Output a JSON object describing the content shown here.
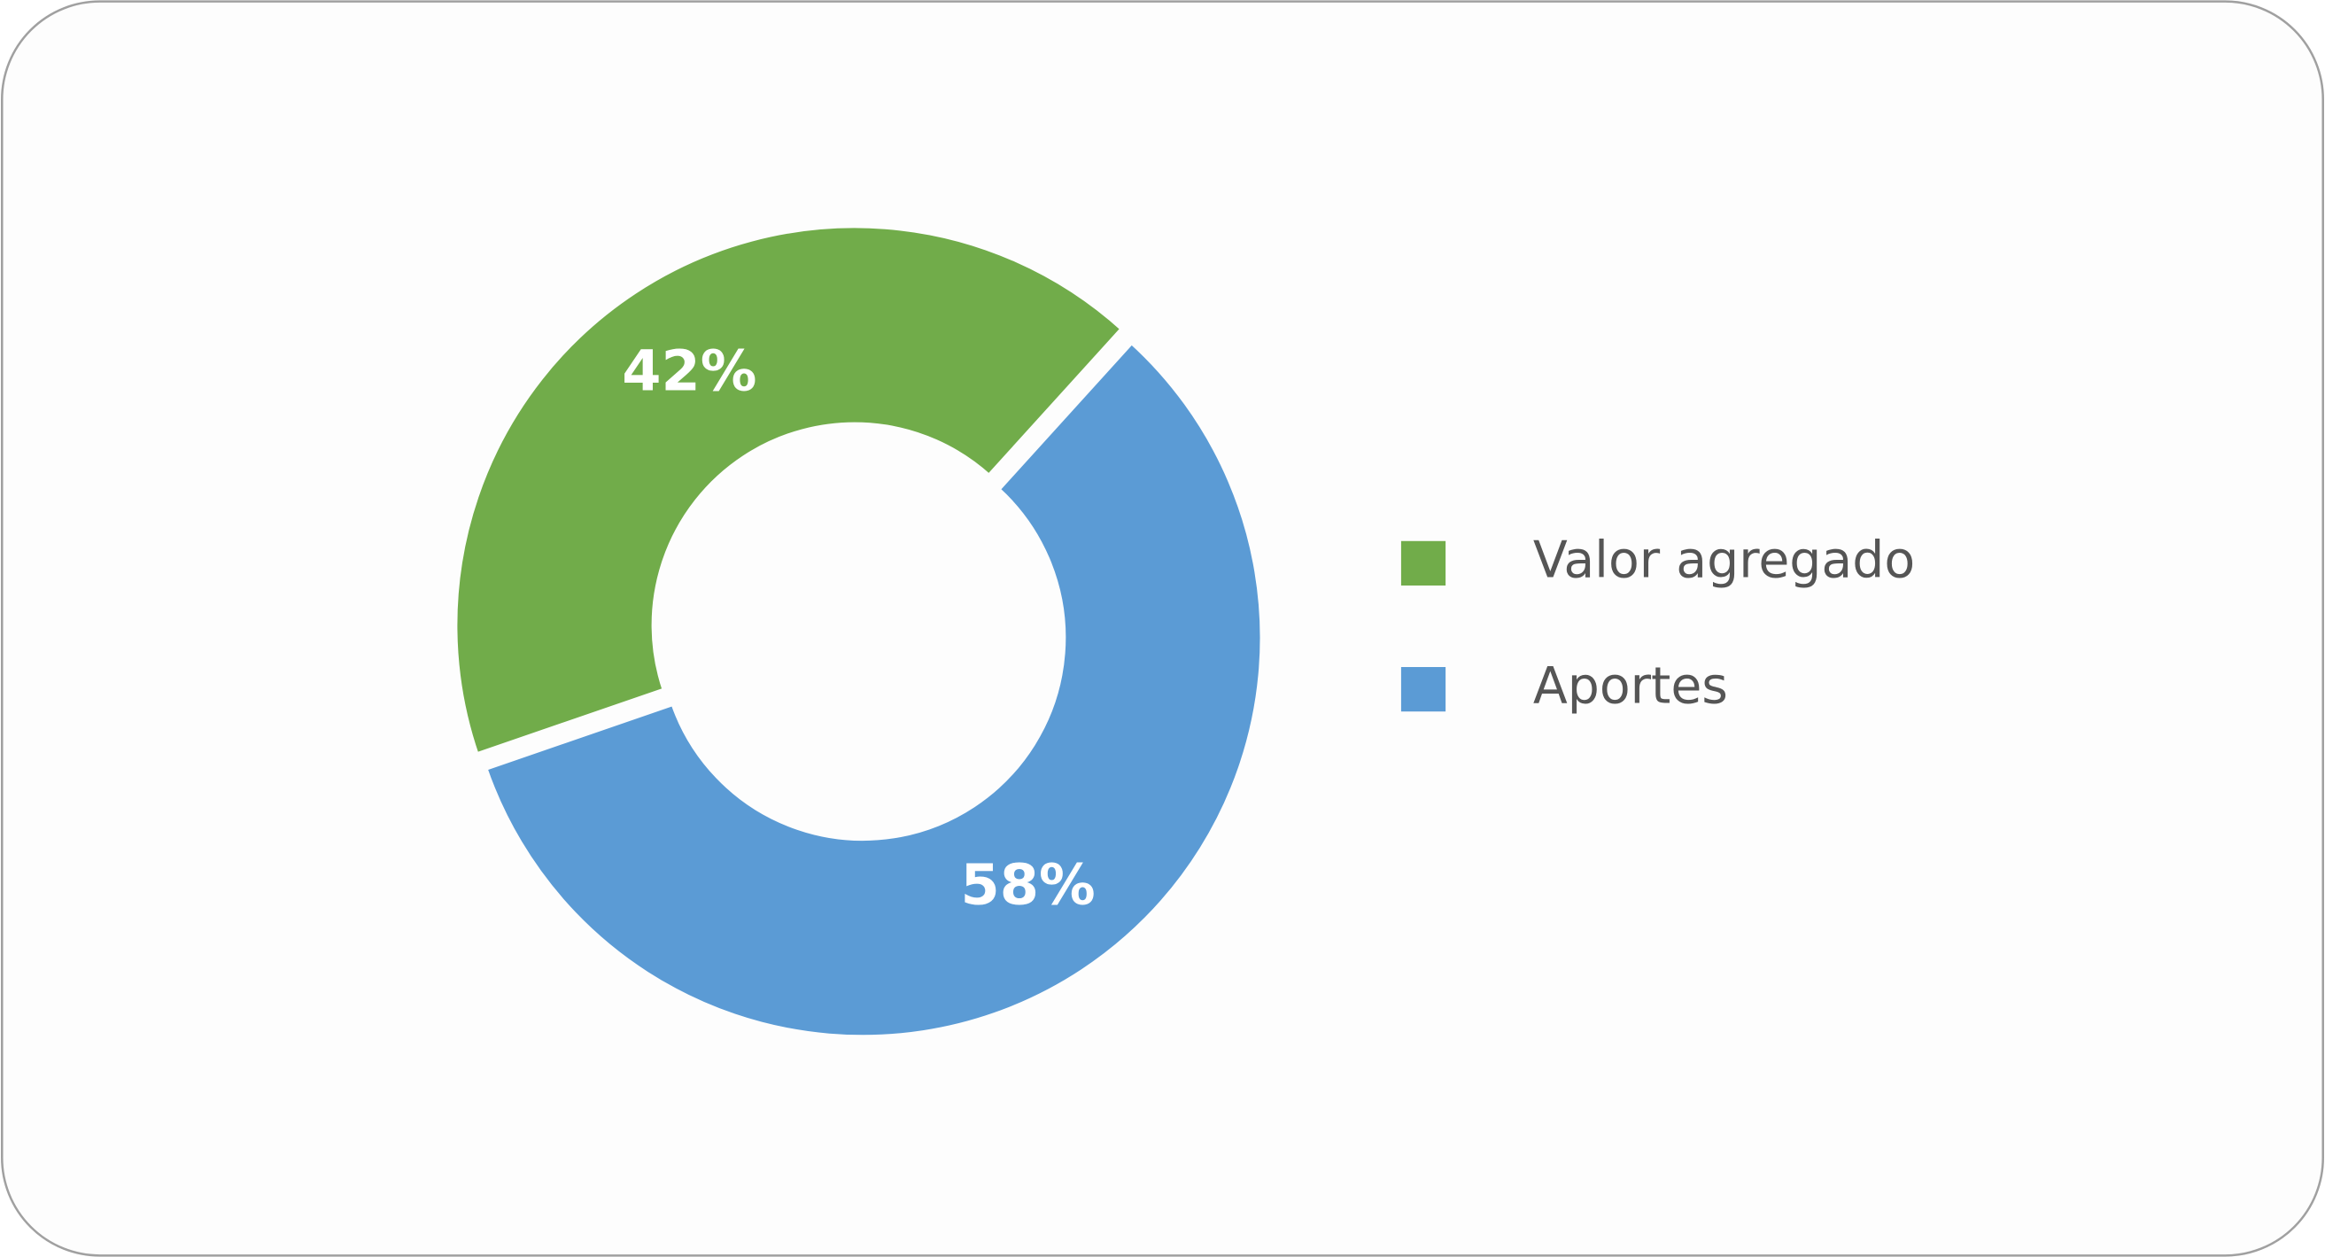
{
  "chart_data": {
    "type": "pie",
    "categories": [
      "Valor agregado",
      "Aportes"
    ],
    "values": [
      42,
      58
    ],
    "value_labels": [
      "42%",
      "58%"
    ],
    "colors": [
      "#71ac4a",
      "#5b9bd5"
    ],
    "donut": true,
    "legend": "right"
  }
}
